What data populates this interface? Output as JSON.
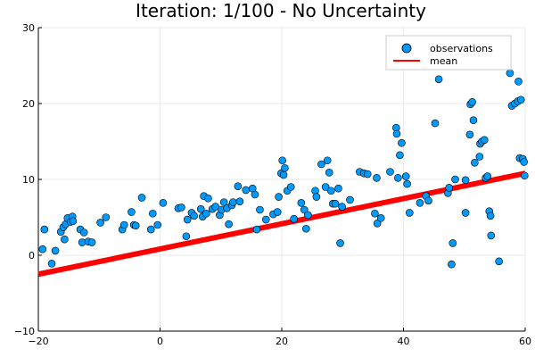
{
  "chart_data": {
    "type": "scatter",
    "title": "Iteration: 1/100 - No Uncertainty",
    "xlabel": "",
    "ylabel": "",
    "xlim": [
      -20,
      60
    ],
    "ylim": [
      -10,
      30
    ],
    "x_ticks": [
      -20,
      0,
      20,
      40,
      60
    ],
    "y_ticks": [
      -10,
      0,
      10,
      20,
      30
    ],
    "x_tick_labels": [
      "−20",
      "0",
      "20",
      "40",
      "60"
    ],
    "y_tick_labels": [
      "−10",
      "0",
      "10",
      "20",
      "30"
    ],
    "grid": true,
    "legend_position": "top-right",
    "colors": {
      "observations": "#009AFA",
      "mean": "#FF0000"
    },
    "series": [
      {
        "name": "observations",
        "kind": "scatter",
        "points": [
          [
            -19.0,
            3.4
          ],
          [
            -19.3,
            0.8
          ],
          [
            -17.8,
            -1.1
          ],
          [
            -17.2,
            0.6
          ],
          [
            -16.3,
            3.1
          ],
          [
            -15.9,
            3.7
          ],
          [
            -15.7,
            2.1
          ],
          [
            -15.5,
            4.1
          ],
          [
            -15.2,
            4.9
          ],
          [
            -14.7,
            4.4
          ],
          [
            -14.4,
            5.1
          ],
          [
            -14.3,
            4.5
          ],
          [
            -13.1,
            3.4
          ],
          [
            -12.8,
            1.7
          ],
          [
            -12.5,
            3.0
          ],
          [
            -11.8,
            1.8
          ],
          [
            -11.2,
            1.7
          ],
          [
            -9.8,
            4.3
          ],
          [
            -8.9,
            5.0
          ],
          [
            -6.2,
            3.4
          ],
          [
            -5.9,
            4.0
          ],
          [
            -4.7,
            5.7
          ],
          [
            -4.3,
            4.0
          ],
          [
            -4.0,
            3.9
          ],
          [
            -3.0,
            7.6
          ],
          [
            -1.5,
            3.4
          ],
          [
            -1.2,
            5.5
          ],
          [
            -0.4,
            4.0
          ],
          [
            0.5,
            6.9
          ],
          [
            3.0,
            6.2
          ],
          [
            3.5,
            6.3
          ],
          [
            4.3,
            2.5
          ],
          [
            4.5,
            4.7
          ],
          [
            5.2,
            5.6
          ],
          [
            5.6,
            5.2
          ],
          [
            6.7,
            6.1
          ],
          [
            7.0,
            5.1
          ],
          [
            7.2,
            7.8
          ],
          [
            7.6,
            5.5
          ],
          [
            7.9,
            7.5
          ],
          [
            8.6,
            6.1
          ],
          [
            9.1,
            6.4
          ],
          [
            9.8,
            5.3
          ],
          [
            10.1,
            6.0
          ],
          [
            10.5,
            7.0
          ],
          [
            11.0,
            6.2
          ],
          [
            11.3,
            4.1
          ],
          [
            11.8,
            6.6
          ],
          [
            12.0,
            7.0
          ],
          [
            12.8,
            9.1
          ],
          [
            13.1,
            7.1
          ],
          [
            14.1,
            8.6
          ],
          [
            15.2,
            8.8
          ],
          [
            15.6,
            8.0
          ],
          [
            15.9,
            3.4
          ],
          [
            16.4,
            6.0
          ],
          [
            17.4,
            4.7
          ],
          [
            18.6,
            5.4
          ],
          [
            19.3,
            5.7
          ],
          [
            19.5,
            7.7
          ],
          [
            19.9,
            10.8
          ],
          [
            20.1,
            12.5
          ],
          [
            20.3,
            10.6
          ],
          [
            20.5,
            11.5
          ],
          [
            20.9,
            8.5
          ],
          [
            21.5,
            9.0
          ],
          [
            22.0,
            4.8
          ],
          [
            23.2,
            6.9
          ],
          [
            23.7,
            6.0
          ],
          [
            24.0,
            3.5
          ],
          [
            24.3,
            5.3
          ],
          [
            25.5,
            8.5
          ],
          [
            25.7,
            7.7
          ],
          [
            26.5,
            12.0
          ],
          [
            27.2,
            9.0
          ],
          [
            27.5,
            12.5
          ],
          [
            27.8,
            10.9
          ],
          [
            28.1,
            8.5
          ],
          [
            28.4,
            6.8
          ],
          [
            28.8,
            6.8
          ],
          [
            29.3,
            8.8
          ],
          [
            29.6,
            1.6
          ],
          [
            29.9,
            6.4
          ],
          [
            31.2,
            7.3
          ],
          [
            32.8,
            11.0
          ],
          [
            33.5,
            10.8
          ],
          [
            34.1,
            10.7
          ],
          [
            35.3,
            5.5
          ],
          [
            35.6,
            10.2
          ],
          [
            35.7,
            4.2
          ],
          [
            36.3,
            4.9
          ],
          [
            37.8,
            11.0
          ],
          [
            38.8,
            16.8
          ],
          [
            38.9,
            16.0
          ],
          [
            39.1,
            10.2
          ],
          [
            39.4,
            13.2
          ],
          [
            39.7,
            14.8
          ],
          [
            40.4,
            10.4
          ],
          [
            40.6,
            9.4
          ],
          [
            41.0,
            5.6
          ],
          [
            42.7,
            6.9
          ],
          [
            43.7,
            7.8
          ],
          [
            44.1,
            7.2
          ],
          [
            45.2,
            17.4
          ],
          [
            45.8,
            23.2
          ],
          [
            47.3,
            8.2
          ],
          [
            47.5,
            8.9
          ],
          [
            47.9,
            -1.2
          ],
          [
            48.1,
            1.6
          ],
          [
            48.5,
            10.0
          ],
          [
            50.2,
            9.9
          ],
          [
            50.2,
            5.6
          ],
          [
            50.9,
            15.9
          ],
          [
            51.0,
            19.9
          ],
          [
            51.3,
            20.2
          ],
          [
            51.5,
            17.8
          ],
          [
            51.7,
            12.2
          ],
          [
            52.5,
            13.0
          ],
          [
            52.6,
            14.7
          ],
          [
            52.9,
            15.0
          ],
          [
            53.3,
            15.2
          ],
          [
            53.5,
            10.2
          ],
          [
            53.8,
            10.4
          ],
          [
            54.1,
            5.8
          ],
          [
            54.3,
            5.2
          ],
          [
            54.4,
            2.6
          ],
          [
            55.7,
            -0.8
          ],
          [
            57.5,
            24.0
          ],
          [
            57.8,
            19.7
          ],
          [
            58.3,
            20.0
          ],
          [
            58.8,
            20.3
          ],
          [
            58.9,
            22.9
          ],
          [
            59.1,
            12.8
          ],
          [
            59.3,
            20.5
          ],
          [
            59.6,
            12.7
          ],
          [
            59.9,
            10.5
          ],
          [
            59.8,
            12.3
          ]
        ]
      },
      {
        "name": "mean",
        "kind": "line",
        "points": [
          [
            -20,
            -2.5
          ],
          [
            60,
            10.8
          ]
        ]
      }
    ]
  }
}
